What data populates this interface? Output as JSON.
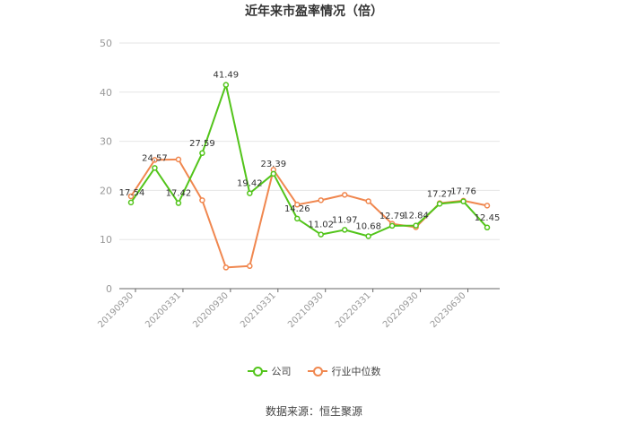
{
  "chart_data": {
    "type": "line",
    "title": "近年来市盈率情况（倍）",
    "x_tick_labels": [
      "20190930",
      "20200331",
      "20200930",
      "20210331",
      "20210930",
      "20220331",
      "20220930",
      "20230630"
    ],
    "ylim": [
      0,
      50
    ],
    "y_ticks": [
      "0",
      "10",
      "20",
      "30",
      "40",
      "50"
    ],
    "grid": true,
    "legend_position": "bottom",
    "series": [
      {
        "name": "公司",
        "color": "#52c41a",
        "values": [
          17.54,
          24.57,
          17.42,
          27.59,
          41.49,
          19.42,
          23.39,
          14.26,
          11.02,
          11.97,
          10.68,
          12.79,
          12.84,
          17.27,
          17.76,
          12.45
        ],
        "labels": [
          "17.54",
          "24.57",
          "17.42",
          "27.59",
          "41.49",
          "19.42",
          "23.39",
          "14.26",
          "11.02",
          "11.97",
          "10.68",
          "12.79",
          "12.84",
          "17.27",
          "17.76",
          "12.45"
        ]
      },
      {
        "name": "行业中位数",
        "color": "#f0874f",
        "values": [
          18.8,
          26.2,
          26.3,
          18.0,
          4.3,
          4.6,
          24.2,
          17.1,
          18.0,
          19.1,
          17.8,
          13.2,
          12.5,
          17.4,
          17.9,
          16.9
        ]
      }
    ]
  },
  "source_text": "数据来源：恒生聚源"
}
